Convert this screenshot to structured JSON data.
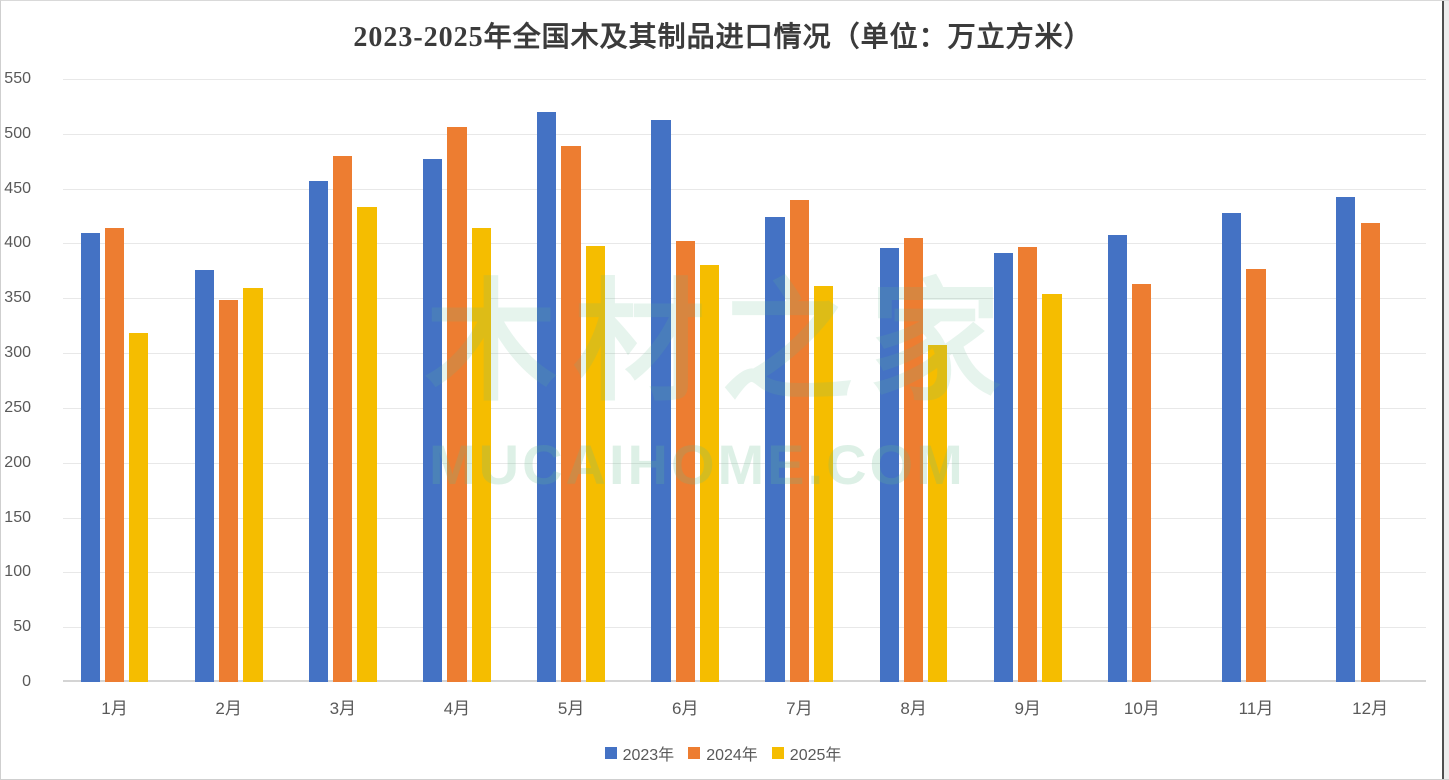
{
  "chart_data": {
    "type": "bar",
    "title": "2023-2025年全国木及其制品进口情况（单位：万立方米）",
    "categories": [
      "1月",
      "2月",
      "3月",
      "4月",
      "5月",
      "6月",
      "7月",
      "8月",
      "9月",
      "10月",
      "11月",
      "12月"
    ],
    "series": [
      {
        "name": "2023年",
        "color": "#4472C4",
        "values": [
          410,
          376,
          457,
          477,
          520,
          513,
          424,
          396,
          391,
          408,
          428,
          442
        ]
      },
      {
        "name": "2024年",
        "color": "#ED7D31",
        "values": [
          414,
          348,
          480,
          506,
          489,
          402,
          440,
          405,
          397,
          363,
          377,
          419
        ]
      },
      {
        "name": "2025年",
        "color": "#F5BD00",
        "values": [
          318,
          359,
          433,
          414,
          398,
          380,
          361,
          307,
          354,
          null,
          null,
          null
        ]
      }
    ],
    "ylim": [
      0,
      550
    ],
    "ytick_step": 50,
    "yticks": [
      0,
      50,
      100,
      150,
      200,
      250,
      300,
      350,
      400,
      450,
      500,
      550
    ],
    "grid": "horizontal",
    "legend_position": "bottom",
    "xlabel": "",
    "ylabel": ""
  },
  "watermark": {
    "line1": "木材之家",
    "line2": "MUCAIHOME.COM"
  },
  "colors": {
    "gridline": "#e8e8e8",
    "axis_line": "#d4d4d4",
    "tick_text": "#595959",
    "title_text": "#3b3b3b"
  }
}
